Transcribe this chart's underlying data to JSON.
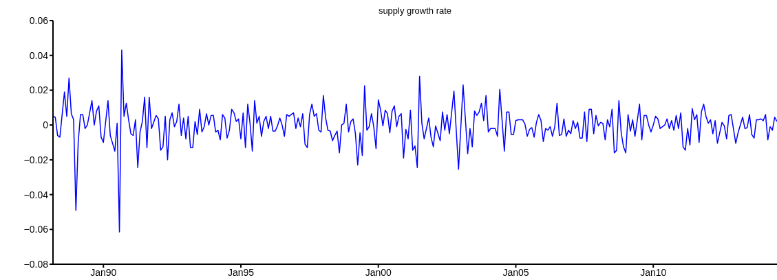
{
  "chart_data": {
    "type": "line",
    "title": "supply growth rate",
    "marker": "none",
    "line_style": "solid",
    "grid": false,
    "legend": false,
    "xlim": [
      "1988-03",
      "2014-07"
    ],
    "xticks": [
      {
        "value": "1990-01",
        "label": "Jan90"
      },
      {
        "value": "1995-01",
        "label": "Jan95"
      },
      {
        "value": "2000-01",
        "label": "Jan00"
      },
      {
        "value": "2005-01",
        "label": "Jan05"
      },
      {
        "value": "2010-01",
        "label": "Jan10"
      }
    ],
    "ylim": [
      -0.08,
      0.06
    ],
    "yticks": [
      {
        "value": -0.08,
        "label": "−0.08"
      },
      {
        "value": -0.06,
        "label": "−0.06"
      },
      {
        "value": -0.04,
        "label": "−0.04"
      },
      {
        "value": -0.02,
        "label": "−0.02"
      },
      0,
      0.02,
      0.04,
      0.06
    ],
    "x": [
      "1988-03",
      "1988-04",
      "1988-05",
      "1988-06",
      "1988-08",
      "1988-09",
      "1988-10",
      "1988-11",
      "1988-12",
      "1989-01",
      "1989-02",
      "1989-03",
      "1989-04",
      "1989-05",
      "1989-06",
      "1989-08",
      "1989-09",
      "1989-10",
      "1989-11",
      "1989-12",
      "1990-01",
      "1990-03",
      "1990-04",
      "1990-06",
      "1990-07",
      "1990-08",
      "1990-09",
      "1990-10",
      "1990-11",
      "1990-12",
      "1991-01",
      "1991-02",
      "1991-03",
      "1991-04",
      "1991-05",
      "1991-06",
      "1991-07",
      "1991-08",
      "1991-09",
      "1991-10",
      "1991-12",
      "1992-01",
      "1992-02",
      "1992-03",
      "1992-04",
      "1992-05",
      "1992-06",
      "1992-07",
      "1992-08",
      "1992-09",
      "1992-10",
      "1992-11",
      "1992-12",
      "1993-01",
      "1993-02",
      "1993-03",
      "1993-04",
      "1993-05",
      "1993-06",
      "1993-07",
      "1993-08",
      "1993-09",
      "1993-10",
      "1993-11",
      "1993-12",
      "1994-01",
      "1994-02",
      "1994-03",
      "1994-04",
      "1994-05",
      "1994-06",
      "1994-07",
      "1994-08",
      "1994-09",
      "1994-10",
      "1994-11",
      "1994-12",
      "1995-01",
      "1995-02",
      "1995-03",
      "1995-04",
      "1995-05",
      "1995-06",
      "1995-07",
      "1995-08",
      "1995-09",
      "1995-10",
      "1995-11",
      "1995-12",
      "1996-01",
      "1996-02",
      "1996-03",
      "1996-04",
      "1996-05",
      "1996-06",
      "1996-07",
      "1996-08",
      "1996-09",
      "1996-10",
      "1996-12",
      "1997-01",
      "1997-02",
      "1997-03",
      "1997-04",
      "1997-05",
      "1997-06",
      "1997-07",
      "1997-08",
      "1997-09",
      "1997-10",
      "1997-11",
      "1997-12",
      "1998-01",
      "1998-02",
      "1998-03",
      "1998-04",
      "1998-05",
      "1998-06",
      "1998-07",
      "1998-08",
      "1998-09",
      "1998-10",
      "1998-11",
      "1998-12",
      "1999-01",
      "1999-02",
      "1999-03",
      "1999-04",
      "1999-05",
      "1999-06",
      "1999-07",
      "1999-08",
      "1999-09",
      "1999-10",
      "1999-11",
      "1999-12",
      "2000-01",
      "2000-02",
      "2000-03",
      "2000-04",
      "2000-05",
      "2000-06",
      "2000-07",
      "2000-08",
      "2000-09",
      "2000-10",
      "2000-11",
      "2000-12",
      "2001-01",
      "2001-02",
      "2001-03",
      "2001-04",
      "2001-05",
      "2001-06",
      "2001-07",
      "2001-08",
      "2001-09",
      "2001-11",
      "2001-12",
      "2002-01",
      "2002-02",
      "2002-04",
      "2002-05",
      "2002-06",
      "2002-07",
      "2002-08",
      "2002-10",
      "2002-12",
      "2003-02",
      "2003-04",
      "2003-05",
      "2003-06",
      "2003-07",
      "2003-08",
      "2003-09",
      "2003-10",
      "2003-11",
      "2003-12",
      "2004-01",
      "2004-02",
      "2004-03",
      "2004-04",
      "2004-05",
      "2004-06",
      "2004-08",
      "2004-09",
      "2004-10",
      "2004-11",
      "2004-12",
      "2005-01",
      "2005-02",
      "2005-04",
      "2005-05",
      "2005-06",
      "2005-07",
      "2005-08",
      "2005-09",
      "2005-10",
      "2005-11",
      "2005-12",
      "2006-01",
      "2006-02",
      "2006-03",
      "2006-04",
      "2006-05",
      "2006-06",
      "2006-07",
      "2006-08",
      "2006-09",
      "2006-10",
      "2006-11",
      "2006-12",
      "2007-01",
      "2007-02",
      "2007-03",
      "2007-04",
      "2007-05",
      "2007-06",
      "2007-07",
      "2007-08",
      "2007-09",
      "2007-10",
      "2007-11",
      "2007-12",
      "2008-01",
      "2008-02",
      "2008-03",
      "2008-04",
      "2008-05",
      "2008-06",
      "2008-07",
      "2008-08",
      "2008-09",
      "2008-10",
      "2008-11",
      "2008-12",
      "2009-01",
      "2009-02",
      "2009-03",
      "2009-04",
      "2009-05",
      "2009-06",
      "2009-07",
      "2009-08",
      "2009-09",
      "2009-10",
      "2009-11",
      "2009-12",
      "2010-01",
      "2010-02",
      "2010-03",
      "2010-04",
      "2010-06",
      "2010-07",
      "2010-08",
      "2010-09",
      "2010-10",
      "2010-11",
      "2010-12",
      "2011-01",
      "2011-02",
      "2011-03",
      "2011-04",
      "2011-05",
      "2011-06",
      "2011-07",
      "2011-08",
      "2011-09",
      "2011-10",
      "2011-11",
      "2011-12",
      "2012-01",
      "2012-02",
      "2012-03",
      "2012-04",
      "2012-05",
      "2012-07",
      "2012-08",
      "2012-09",
      "2012-10",
      "2012-11",
      "2013-01",
      "2013-02",
      "2013-04",
      "2013-05",
      "2013-06",
      "2013-07",
      "2013-08",
      "2013-09",
      "2013-10",
      "2013-11",
      "2013-12",
      "2014-01",
      "2014-02",
      "2014-03",
      "2014-04",
      "2014-05",
      "2014-06",
      "2014-07"
    ],
    "series": [
      {
        "color": "#0000ff",
        "values": [
          0.005,
          0.0045,
          -0.006,
          -0.007,
          0.019,
          0.005,
          0.027,
          0.0065,
          0.003,
          -0.049,
          -0.01,
          0.006,
          0.006,
          -0.002,
          0,
          0.014,
          0,
          0.008,
          0.011,
          -0.007,
          -0.01,
          0.014,
          -0.006,
          -0.015,
          0.001,
          -0.0615,
          0.043,
          0.005,
          0.0125,
          0.003,
          -0.005,
          -0.006,
          0.003,
          -0.0245,
          -0.004,
          0.002,
          0.016,
          -0.013,
          0.016,
          -0.002,
          0.0055,
          0.0035,
          -0.0145,
          -0.0125,
          0.005,
          -0.02,
          0.003,
          0.007,
          -0.001,
          0.002,
          0.012,
          -0.006,
          0.004,
          -0.008,
          0.005,
          -0.013,
          -0.013,
          0.002,
          -0.0055,
          0.009,
          -0.004,
          -0.001,
          0.0065,
          0,
          0.0055,
          0.0055,
          -0.004,
          -0.003,
          -0.0085,
          0.006,
          0.004,
          -0.0075,
          -0.003,
          0.009,
          0.007,
          0.002,
          0.0035,
          -0.008,
          0.007,
          -0.013,
          0.012,
          0.001,
          -0.015,
          0.014,
          0.001,
          0.005,
          -0.0065,
          0.002,
          0.005,
          -0.002,
          0.005,
          -0.0035,
          -0.0035,
          -0.0005,
          0.004,
          0,
          -0.0065,
          0.006,
          0.005,
          0.007,
          -0.002,
          0.004,
          -0.001,
          0.0065,
          -0.011,
          -0.013,
          0.006,
          0.012,
          0.005,
          0.0065,
          -0.003,
          -0.004,
          0.017,
          0.004,
          -0.003,
          -0.0035,
          -0.009,
          -0.006,
          -0.0035,
          -0.016,
          0,
          0.001,
          0.012,
          -0.004,
          0.002,
          0.0035,
          -0.005,
          -0.023,
          -0.0045,
          -0.0175,
          0.0225,
          -0.003,
          -0.001,
          0.0065,
          -0.001,
          -0.0135,
          0.0145,
          0.0085,
          -0.0005,
          0.0085,
          0.0065,
          -0.0045,
          0.008,
          0.011,
          -0.001,
          0.005,
          0.0065,
          -0.019,
          -0.0025,
          -0.008,
          0.0085,
          -0.0145,
          -0.012,
          -0.0245,
          0.028,
          0.001,
          -0.008,
          0.004,
          -0.007,
          -0.0125,
          -0.0005,
          -0.009,
          0.0075,
          -0.003,
          0.006,
          -0.005,
          0.0195,
          -0.0255,
          0.023,
          -0.0165,
          -0.002,
          -0.0125,
          0.008,
          0.0055,
          0.0075,
          0.0125,
          0.0025,
          0.017,
          -0.004,
          -0.002,
          -0.002,
          -0.002,
          -0.0065,
          0.0205,
          -0.015,
          0.0075,
          0.0075,
          -0.0055,
          -0.0055,
          0.0025,
          0.003,
          0.003,
          0.0005,
          -0.0065,
          -0.0025,
          -0.0015,
          -0.007,
          0.0015,
          0.006,
          0.0025,
          -0.0095,
          -0.002,
          -0.003,
          -0.001,
          -0.0065,
          -0.001,
          0.0125,
          -0.006,
          -0.0055,
          0.0035,
          -0.0065,
          -0.003,
          -0.005,
          0.0025,
          -0.002,
          0.0015,
          -0.0075,
          -0.0075,
          0.0075,
          -0.0095,
          0.009,
          0.009,
          -0.005,
          0.0055,
          -0.0005,
          0.0015,
          0.001,
          -0.0085,
          0.003,
          -0.001,
          0.009,
          -0.016,
          -0.0145,
          0.014,
          -0.0045,
          -0.0125,
          -0.016,
          0.006,
          -0.0035,
          0.003,
          -0.0065,
          0.0025,
          0.012,
          -0.0085,
          0.0055,
          0.0055,
          0,
          -0.004,
          0,
          0.005,
          0.0035,
          -0.002,
          0,
          0.0035,
          -0.002,
          0.0025,
          -0.003,
          0.0055,
          -0.002,
          0.007,
          -0.0125,
          -0.0145,
          -0.002,
          -0.0115,
          0.0095,
          0.003,
          0.006,
          -0.01,
          0.0075,
          0.012,
          0.005,
          0.001,
          0.003,
          -0.005,
          0.0025,
          -0.0105,
          0.0015,
          -0.0005,
          -0.008,
          0.0055,
          0.006,
          -0.0105,
          -0.0045,
          0.0045,
          -0.002,
          -0.0015,
          0.006,
          -0.0055,
          -0.0075,
          0.003,
          0.003,
          0.0035,
          0.0025,
          0.006,
          -0.0085,
          -0.001,
          -0.003,
          0.0045,
          0.002
        ]
      }
    ]
  }
}
